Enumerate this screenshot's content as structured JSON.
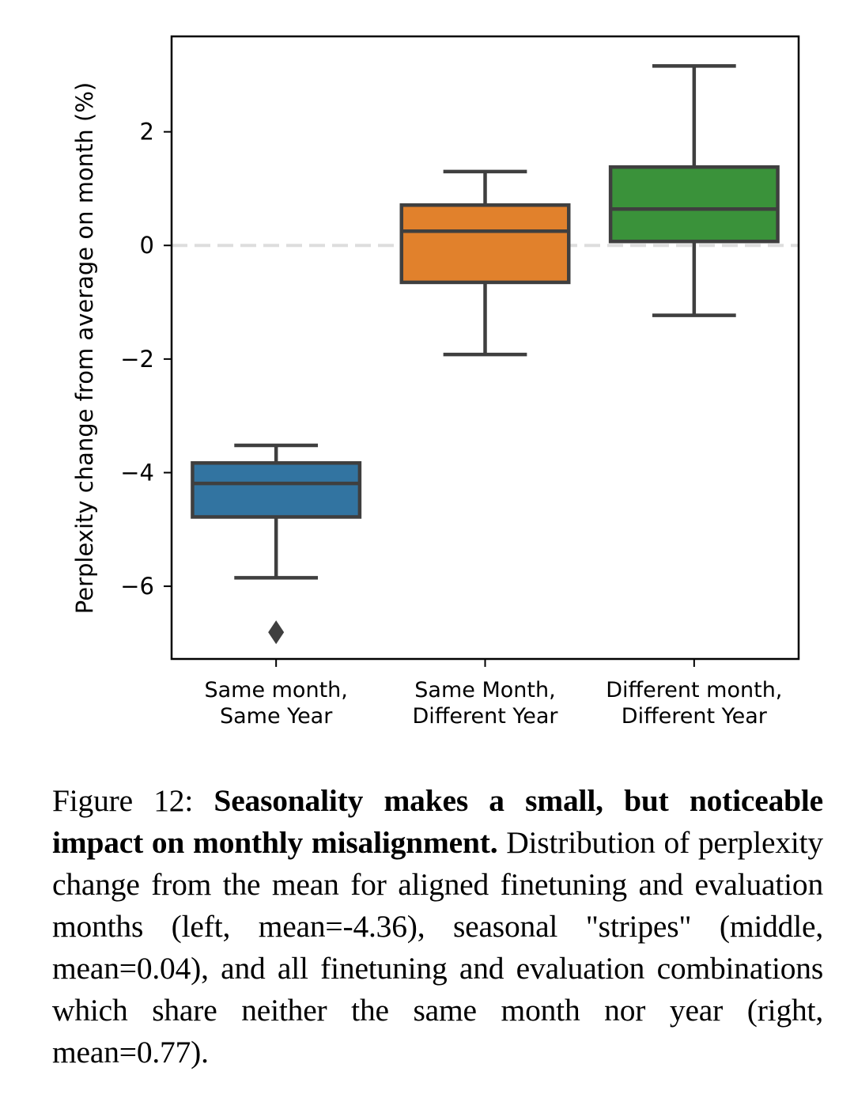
{
  "chart_data": {
    "type": "box",
    "title": "",
    "xlabel": "",
    "ylabel": "Perplexity change from average on month (%)",
    "ylim": [
      -7.28,
      3.68
    ],
    "yticks": [
      2,
      0,
      -2,
      -4,
      -6
    ],
    "ytick_labels": [
      "2",
      "0",
      "−2",
      "−4",
      "−6"
    ],
    "reference_line": {
      "y": 0,
      "style": "dashed",
      "color": "#dddddd"
    },
    "grid": false,
    "categories": [
      {
        "line1": "Same month,",
        "line2": "Same Year"
      },
      {
        "line1": "Same Month,",
        "line2": "Different Year"
      },
      {
        "line1": "Different month,",
        "line2": "Different Year"
      }
    ],
    "series": [
      {
        "name": "Same month, Same Year",
        "color": "#3274a1",
        "whisker_low": -5.85,
        "q1": -4.78,
        "median": -4.19,
        "q3": -3.83,
        "whisker_high": -3.52,
        "outliers": [
          -6.81
        ]
      },
      {
        "name": "Same Month, Different Year",
        "color": "#e1812c",
        "whisker_low": -1.92,
        "q1": -0.65,
        "median": 0.25,
        "q3": 0.71,
        "whisker_high": 1.3,
        "outliers": []
      },
      {
        "name": "Different month, Different Year",
        "color": "#3a923a",
        "whisker_low": -1.23,
        "q1": 0.07,
        "median": 0.64,
        "q3": 1.38,
        "whisker_high": 3.16,
        "outliers": []
      }
    ],
    "line_color": "#3f3f3f"
  },
  "caption": {
    "label": "Figure 12:",
    "bold": "Seasonality makes a small, but noticeable impact on monthly misalignment.",
    "text": "Distribution of perplexity change from the mean for aligned finetuning and evaluation months (left, mean=-4.36), seasonal \"stripes\" (middle, mean=0.04), and all finetuning and evaluation combinations which share neither the same month nor year (right, mean=0.77)."
  }
}
